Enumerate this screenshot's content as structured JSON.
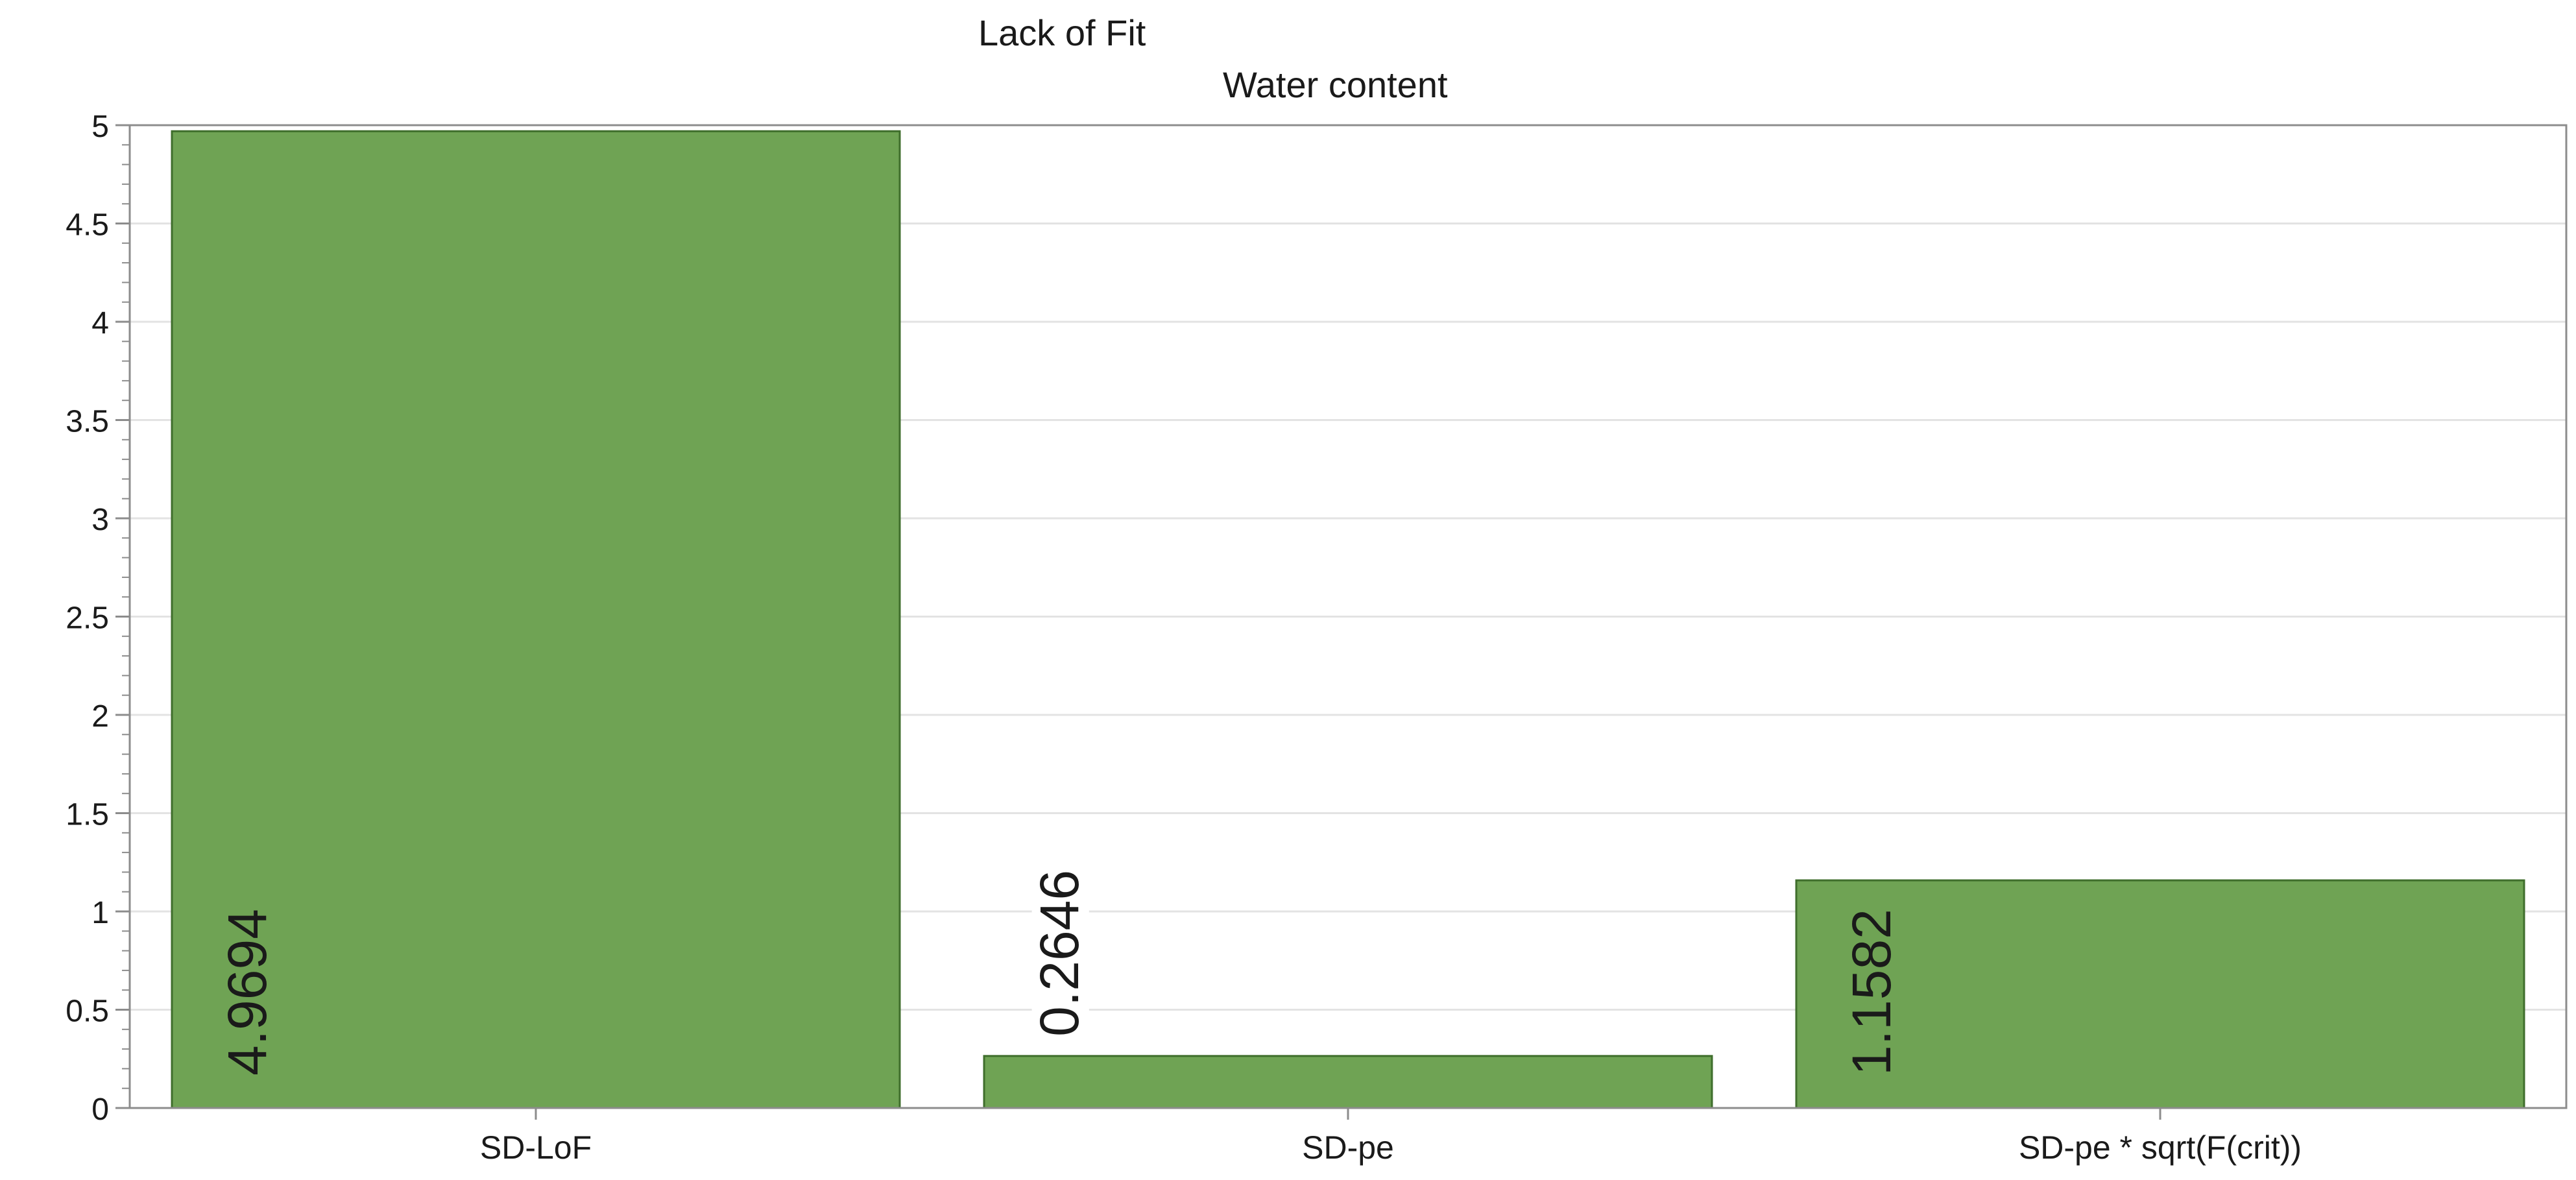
{
  "chart_data": {
    "type": "bar",
    "title": "Lack of Fit",
    "subtitle": "Water content",
    "xlabel": "",
    "ylabel": "",
    "categories": [
      "SD-LoF",
      "SD-pe",
      "SD-pe * sqrt(F(crit))"
    ],
    "values": [
      4.9694,
      0.2646,
      1.1582
    ],
    "data_labels": [
      "4.9694",
      "0.2646",
      "1.1582"
    ],
    "ylim": [
      0,
      5
    ],
    "yticks": [
      0,
      0.5,
      1,
      1.5,
      2,
      2.5,
      3,
      3.5,
      4,
      4.5,
      5
    ],
    "ytick_labels": [
      "0",
      "0.5",
      "1",
      "1.5",
      "2",
      "2.5",
      "3",
      "3.5",
      "4",
      "4.5",
      "5"
    ],
    "grid": true,
    "legend": "none",
    "colors": {
      "bar_fill": "#6fa354",
      "bar_stroke": "#3f6e2c",
      "grid": "#e3e3e3",
      "axis": "#8c8c8c",
      "text": "#1a1a1a"
    }
  }
}
